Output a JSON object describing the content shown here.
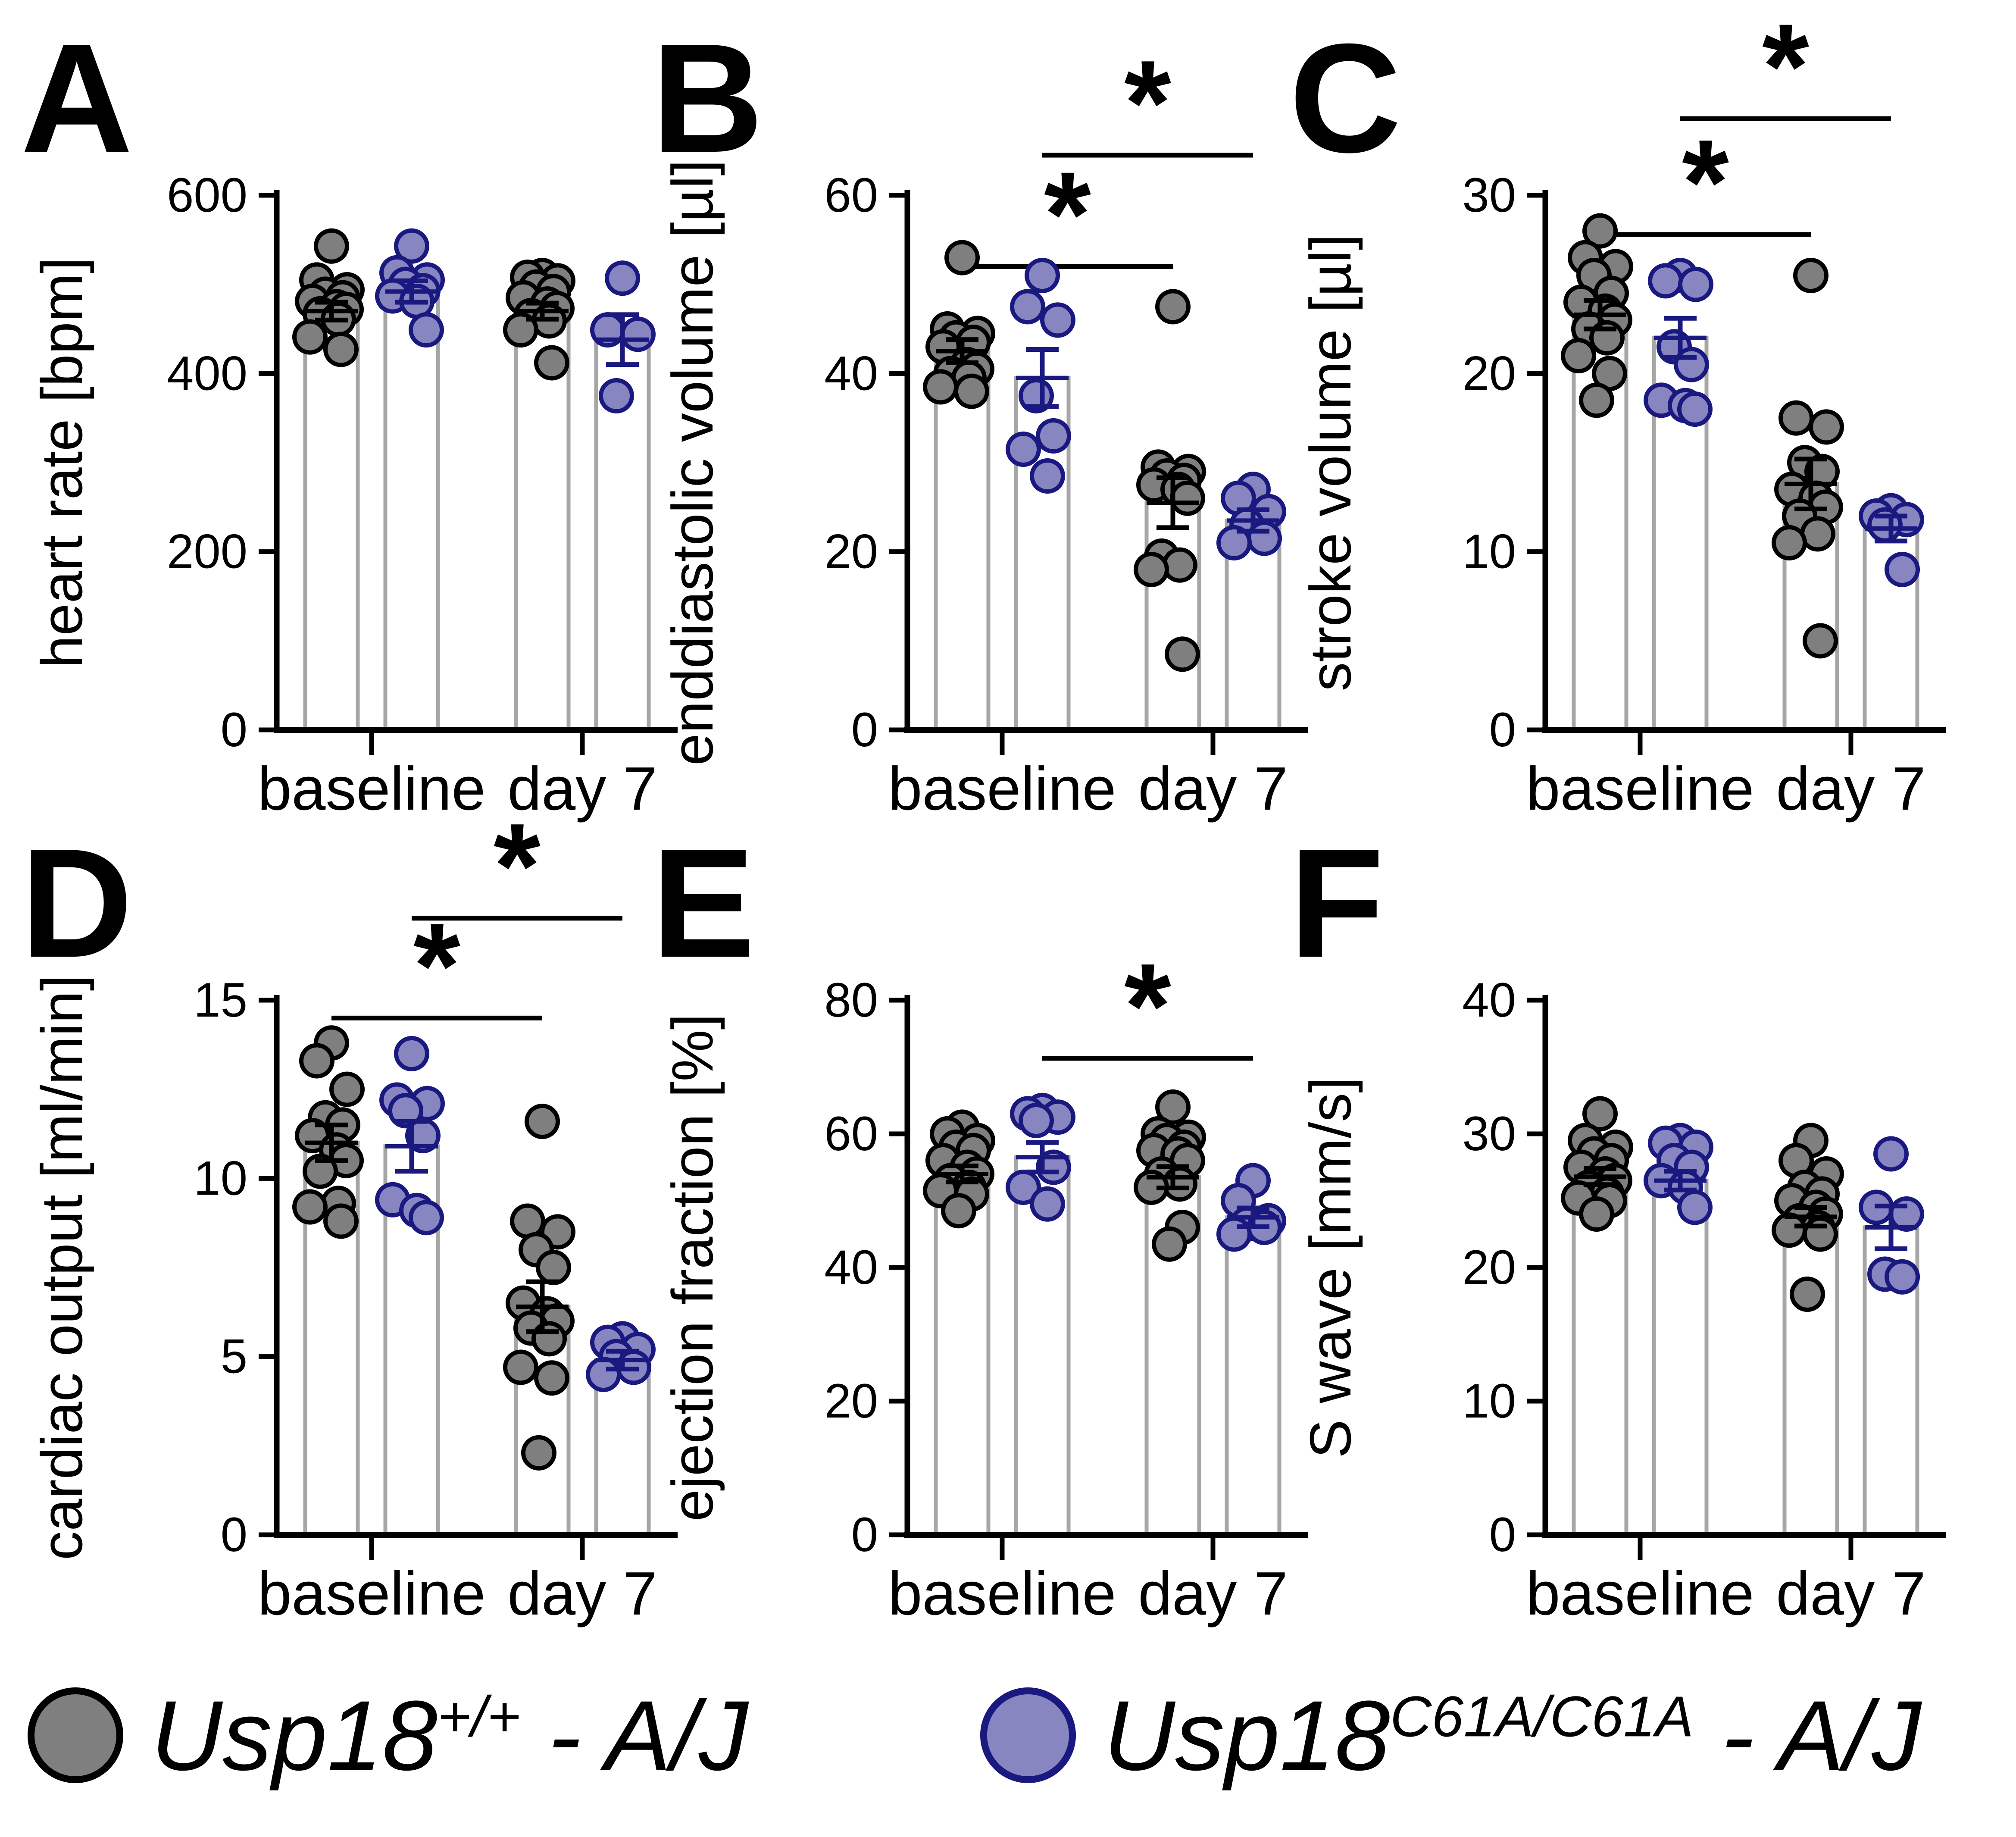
{
  "figure": {
    "background": "#ffffff"
  },
  "style": {
    "axis_color": "#000000",
    "bar_fill": "#ffffff",
    "bar_outline": "#a6a6a6",
    "significance_color": "#000000",
    "significance_label": "*"
  },
  "series_defs": [
    {
      "key": "wildtype",
      "genotype": "Usp18+/+ - A/J",
      "fill": "#7f7f7f",
      "stroke": "#000000",
      "error_color": "#000000"
    },
    {
      "key": "mutant",
      "genotype": "Usp18C61A/C61A - A/J",
      "fill": "#8886c1",
      "stroke": "#191980",
      "error_color": "#191980"
    }
  ],
  "x_groups": [
    "baseline",
    "day 7"
  ],
  "legend": {
    "items": [
      {
        "name": "wildtype",
        "gene": "Usp18",
        "allele": "+/+",
        "suffix": " - A/J",
        "fill": "#7f7f7f",
        "stroke": "#000000"
      },
      {
        "name": "mutant",
        "gene": "Usp18",
        "allele": "C61A/C61A",
        "suffix": " - A/J",
        "fill": "#8886c1",
        "stroke": "#191980"
      }
    ]
  },
  "chart_data": [
    {
      "letter": "A",
      "type": "bar",
      "overlay": "scatter",
      "ylabel": "heart rate [bpm]",
      "ylim": [
        0,
        600
      ],
      "yticks": [
        0,
        200,
        400,
        600
      ],
      "categories": [
        "baseline",
        "day 7"
      ],
      "grid": false,
      "series": [
        {
          "group": "baseline",
          "genotype": "Usp18+/+ - A/J",
          "mean": 470,
          "sem": 10,
          "values": [
            543,
            505,
            494,
            489,
            485,
            481,
            475,
            472,
            467,
            461,
            441,
            427
          ]
        },
        {
          "group": "baseline",
          "genotype": "Usp18C61A/C61A - A/J",
          "mean": 492,
          "sem": 12,
          "values": [
            543,
            513,
            505,
            500,
            493,
            487,
            481,
            449
          ]
        },
        {
          "group": "day 7",
          "genotype": "Usp18+/+ - A/J",
          "mean": 470,
          "sem": 9,
          "values": [
            510,
            508,
            504,
            497,
            492,
            485,
            478,
            473,
            465,
            459,
            449,
            412
          ]
        },
        {
          "group": "day 7",
          "genotype": "Usp18C61A/C61A - A/J",
          "mean": 438,
          "sem": 28,
          "values": [
            507,
            449,
            444,
            375
          ]
        }
      ],
      "significance": []
    },
    {
      "letter": "B",
      "type": "bar",
      "overlay": "scatter",
      "ylabel": "enddiastolic volume [µl]",
      "ylim": [
        0,
        60
      ],
      "yticks": [
        0,
        20,
        40,
        60
      ],
      "categories": [
        "baseline",
        "day 7"
      ],
      "grid": false,
      "series": [
        {
          "group": "baseline",
          "genotype": "Usp18+/+ - A/J",
          "mean": 42.5,
          "sem": 1.3,
          "values": [
            53,
            45,
            44.5,
            44,
            43.5,
            43,
            41,
            40.5,
            40,
            39.5,
            38.5,
            38
          ]
        },
        {
          "group": "baseline",
          "genotype": "Usp18C61A/C61A - A/J",
          "mean": 39.5,
          "sem": 3.2,
          "values": [
            51,
            47.5,
            46,
            37.5,
            33,
            31.5,
            28.5
          ]
        },
        {
          "group": "day 7",
          "genotype": "Usp18+/+ - A/J",
          "mean": 25.5,
          "sem": 2.8,
          "values": [
            47.5,
            29.5,
            29,
            28.5,
            28,
            27.5,
            27,
            26,
            19.5,
            18.5,
            18,
            8.5
          ]
        },
        {
          "group": "day 7",
          "genotype": "Usp18C61A/C61A - A/J",
          "mean": 23.5,
          "sem": 1.2,
          "values": [
            27,
            26,
            24.5,
            23,
            21.5,
            21
          ]
        }
      ],
      "significance": [
        {
          "bars": [
            0,
            2
          ],
          "y": 52,
          "label": "*"
        },
        {
          "bars": [
            1,
            3
          ],
          "y": 64.5,
          "label": "*"
        }
      ]
    },
    {
      "letter": "C",
      "type": "bar",
      "overlay": "scatter",
      "ylabel": "stroke volume [µl]",
      "ylim": [
        0,
        30
      ],
      "yticks": [
        0,
        10,
        20,
        30
      ],
      "categories": [
        "baseline",
        "day 7"
      ],
      "grid": false,
      "series": [
        {
          "group": "baseline",
          "genotype": "Usp18+/+ - A/J",
          "mean": 23.3,
          "sem": 0.8,
          "values": [
            28,
            26.5,
            26,
            25.5,
            24.5,
            24,
            23.5,
            23,
            22.5,
            22,
            21,
            20,
            18.5
          ]
        },
        {
          "group": "baseline",
          "genotype": "Usp18C61A/C61A - A/J",
          "mean": 22,
          "sem": 1.1,
          "values": [
            25.5,
            25.2,
            25,
            21.5,
            20.5,
            18.5,
            18.2,
            18
          ]
        },
        {
          "group": "day 7",
          "genotype": "Usp18+/+ - A/J",
          "mean": 13.8,
          "sem": 1.4,
          "values": [
            25.5,
            17.5,
            17,
            15,
            14.5,
            13.5,
            13,
            12.5,
            12,
            11,
            10.5,
            5
          ]
        },
        {
          "group": "day 7",
          "genotype": "Usp18C61A/C61A - A/J",
          "mean": 11.3,
          "sem": 0.7,
          "values": [
            12.3,
            12,
            11.8,
            11.5,
            9
          ]
        }
      ],
      "significance": [
        {
          "bars": [
            0,
            2
          ],
          "y": 27.8,
          "label": "*"
        },
        {
          "bars": [
            1,
            3
          ],
          "y": 34.3,
          "label": "*"
        }
      ]
    },
    {
      "letter": "D",
      "type": "bar",
      "overlay": "scatter",
      "ylabel": "cardiac output [ml/min]",
      "ylim": [
        0,
        15
      ],
      "yticks": [
        0,
        5,
        10,
        15
      ],
      "categories": [
        "baseline",
        "day 7"
      ],
      "grid": false,
      "series": [
        {
          "group": "baseline",
          "genotype": "Usp18+/+ - A/J",
          "mean": 11.0,
          "sem": 0.5,
          "values": [
            13.8,
            13.3,
            12.5,
            11.7,
            11.5,
            11.2,
            10.8,
            10.5,
            10.2,
            9.3,
            9.2,
            8.8
          ]
        },
        {
          "group": "baseline",
          "genotype": "Usp18C61A/C61A - A/J",
          "mean": 10.9,
          "sem": 0.7,
          "values": [
            13.5,
            12.2,
            12.1,
            11.9,
            11.2,
            9.4,
            9.1,
            8.9
          ]
        },
        {
          "group": "day 7",
          "genotype": "Usp18+/+ - A/J",
          "mean": 6.4,
          "sem": 0.7,
          "values": [
            11.6,
            8.8,
            8.5,
            8.0,
            7.5,
            6.5,
            6.2,
            6.0,
            5.8,
            5.5,
            4.7,
            4.4,
            2.3
          ]
        },
        {
          "group": "day 7",
          "genotype": "Usp18C61A/C61A - A/J",
          "mean": 4.9,
          "sem": 0.25,
          "values": [
            5.5,
            5.4,
            5.2,
            5.0,
            4.7,
            4.5
          ]
        }
      ],
      "significance": [
        {
          "bars": [
            0,
            2
          ],
          "y": 14.5,
          "label": "*"
        },
        {
          "bars": [
            1,
            3
          ],
          "y": 17.3,
          "label": "*"
        }
      ]
    },
    {
      "letter": "E",
      "type": "bar",
      "overlay": "scatter",
      "ylabel": "ejection fraction [%]",
      "ylim": [
        0,
        80
      ],
      "yticks": [
        0,
        20,
        40,
        60,
        80
      ],
      "categories": [
        "baseline",
        "day 7"
      ],
      "grid": false,
      "series": [
        {
          "group": "baseline",
          "genotype": "Usp18+/+ - A/J",
          "mean": 54,
          "sem": 1.2,
          "values": [
            61,
            60,
            59,
            58,
            57.5,
            56,
            55,
            54,
            53,
            52,
            51.5,
            51,
            48.5
          ]
        },
        {
          "group": "baseline",
          "genotype": "Usp18C61A/C61A - A/J",
          "mean": 56.5,
          "sem": 2.2,
          "values": [
            63.5,
            63,
            62.5,
            62,
            55,
            52,
            49.5
          ]
        },
        {
          "group": "day 7",
          "genotype": "Usp18+/+ - A/J",
          "mean": 53.5,
          "sem": 1.6,
          "values": [
            64,
            60,
            59.5,
            59,
            58,
            57.5,
            57,
            56,
            54,
            52.5,
            52,
            46,
            43.5
          ]
        },
        {
          "group": "day 7",
          "genotype": "Usp18C61A/C61A - A/J",
          "mean": 47.5,
          "sem": 1.4,
          "values": [
            53,
            50,
            47,
            46.5,
            46,
            45
          ]
        }
      ],
      "significance": [
        {
          "bars": [
            1,
            3
          ],
          "y": 71.3,
          "label": "*"
        }
      ]
    },
    {
      "letter": "F",
      "type": "bar",
      "overlay": "scatter",
      "ylabel": "S wave [mm/s]",
      "ylim": [
        0,
        40
      ],
      "yticks": [
        0,
        10,
        20,
        30,
        40
      ],
      "categories": [
        "baseline",
        "day 7"
      ],
      "grid": false,
      "series": [
        {
          "group": "baseline",
          "genotype": "Usp18+/+ - A/J",
          "mean": 26.8,
          "sem": 0.6,
          "values": [
            31.5,
            29.5,
            29,
            28.5,
            28,
            27.5,
            27,
            26.5,
            26,
            25.5,
            25.2,
            25,
            24
          ]
        },
        {
          "group": "baseline",
          "genotype": "Usp18C61A/C61A - A/J",
          "mean": 26.5,
          "sem": 0.7,
          "values": [
            29.5,
            29.3,
            29,
            28,
            27.5,
            26.5,
            26,
            24.5
          ]
        },
        {
          "group": "day 7",
          "genotype": "Usp18+/+ - A/J",
          "mean": 23.8,
          "sem": 0.7,
          "values": [
            29.5,
            28,
            27,
            26,
            25.5,
            25,
            24.5,
            24,
            23.5,
            23,
            22.8,
            22.5,
            18
          ]
        },
        {
          "group": "day 7",
          "genotype": "Usp18C61A/C61A - A/J",
          "mean": 23,
          "sem": 1.6,
          "values": [
            28.5,
            24.5,
            24,
            19.5,
            19.3
          ]
        }
      ],
      "significance": []
    }
  ]
}
